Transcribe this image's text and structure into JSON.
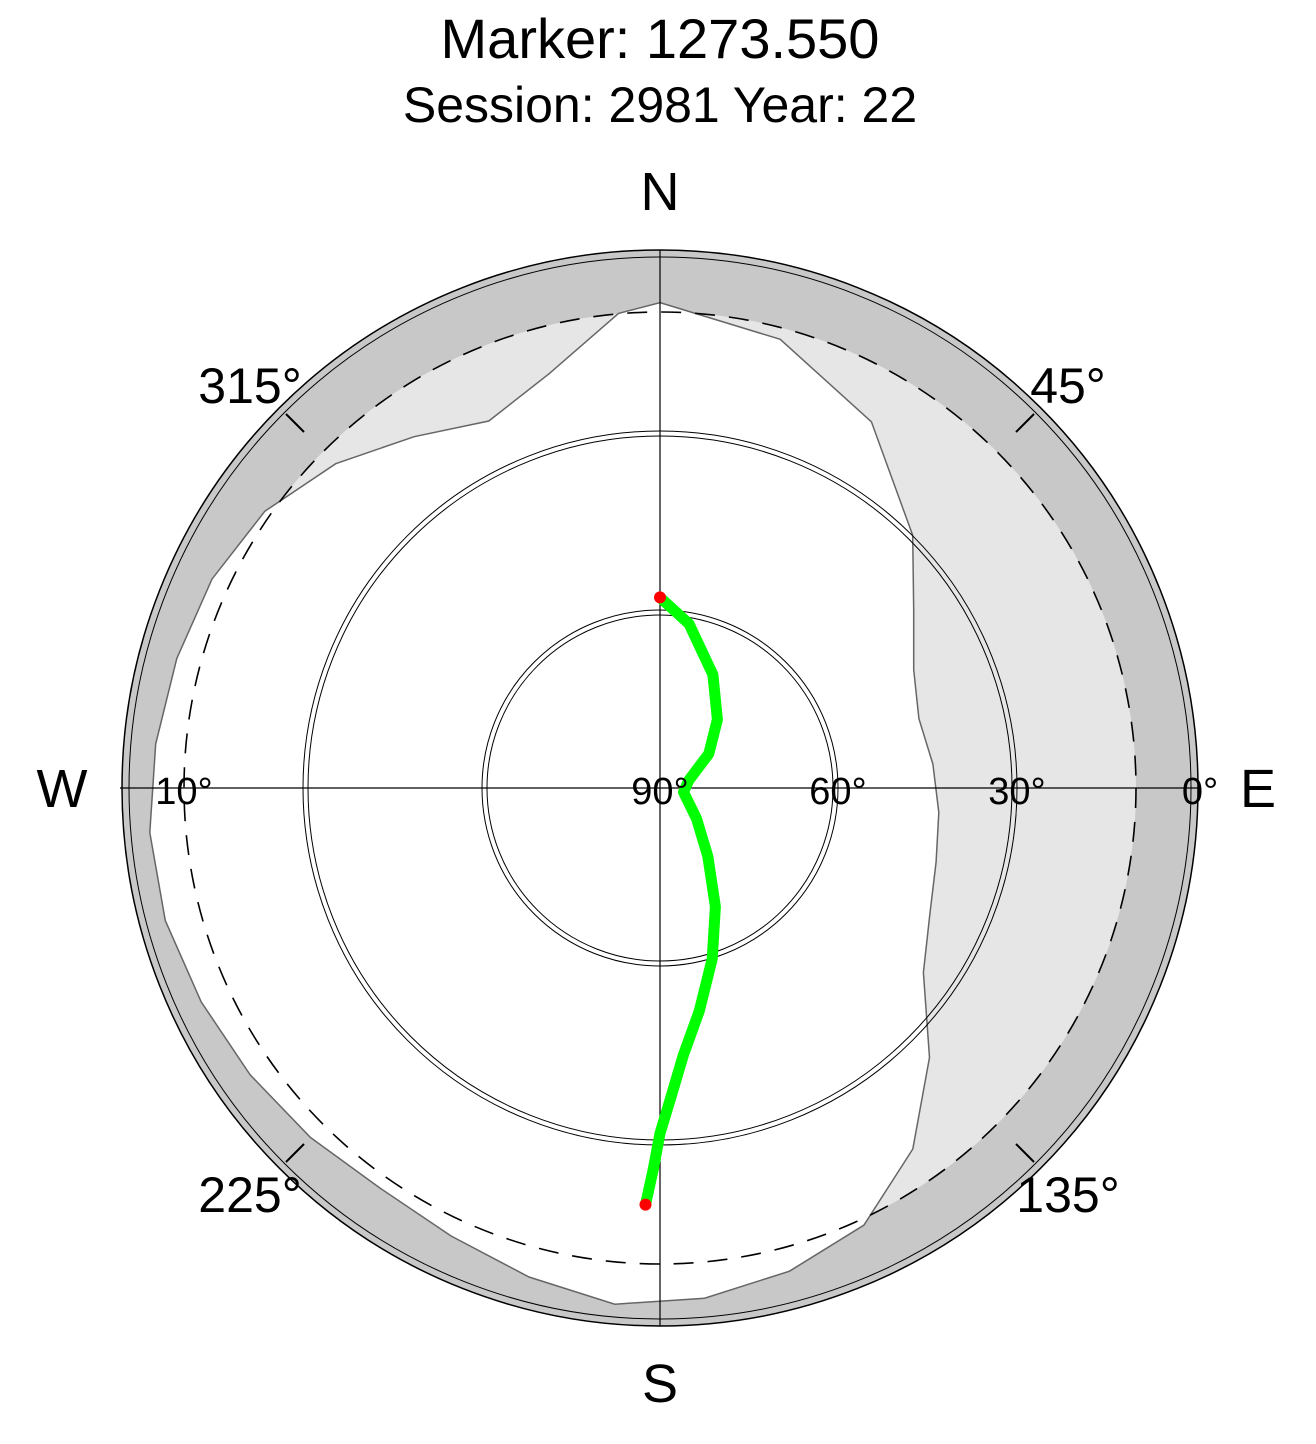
{
  "title": "Marker: 1273.550",
  "subtitle": "Session: 2981 Year: 22",
  "compass": {
    "north": "N",
    "south": "S",
    "east": "E",
    "west": "W"
  },
  "azimuth_labels": [
    "315°",
    "45°",
    "225°",
    "135°"
  ],
  "elevation_labels": [
    "90°",
    "60°",
    "30°",
    "0°",
    "10°"
  ],
  "colors": {
    "track": "#00ff00",
    "endpoint": "#ff0000",
    "sky_mask_dark": "#c8c8c8",
    "sky_mask_light": "#e6e6e6",
    "visible_sky": "#ffffff"
  },
  "chart_data": {
    "type": "polar-skyplot",
    "radial_axis": "elevation (deg)",
    "elevation_range": [
      0,
      90
    ],
    "elevation_cutoff": 10,
    "rings": [
      0,
      30,
      60
    ],
    "series": [
      {
        "points": [
          [
            0,
            58
          ],
          [
            10,
            62
          ],
          [
            25,
            69
          ],
          [
            40,
            75
          ],
          [
            55,
            80
          ],
          [
            75,
            85
          ],
          [
            100,
            86
          ],
          [
            130,
            82
          ],
          [
            145,
            76
          ],
          [
            155,
            68
          ],
          [
            163,
            60
          ],
          [
            170,
            52
          ],
          [
            175,
            45
          ],
          [
            178,
            38
          ],
          [
            180,
            32
          ],
          [
            181,
            26
          ],
          [
            182,
            20
          ]
        ]
      }
    ]
  }
}
